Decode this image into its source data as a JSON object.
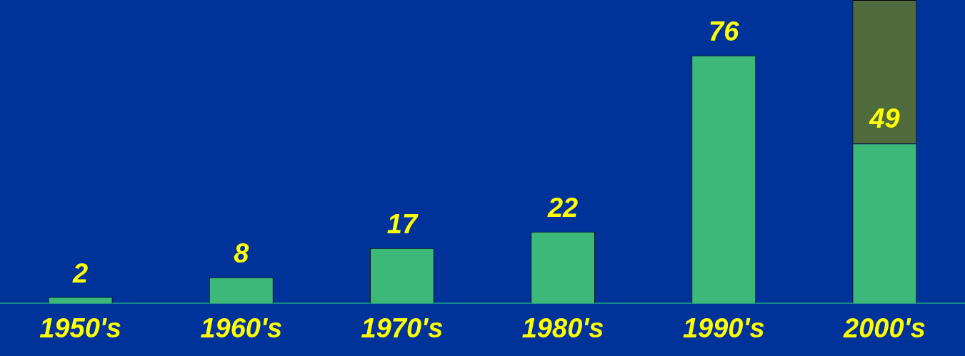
{
  "chart_data": {
    "type": "bar",
    "categories": [
      "1950's",
      "1960's",
      "1970's",
      "1980's",
      "1990's",
      "2000's"
    ],
    "stacked": true,
    "ylim": [
      0,
      93
    ],
    "tick_labels": "x",
    "grid": false,
    "legend": false,
    "series": [
      {
        "color": "#3cb878",
        "values": [
          2,
          8,
          17,
          22,
          76,
          49
        ],
        "value_labels": [
          "2",
          "8",
          "17",
          "22",
          "76",
          "49"
        ]
      },
      {
        "color": "#4f6a3c",
        "values": [
          null,
          null,
          null,
          null,
          null,
          44
        ],
        "value_labels": [
          null,
          null,
          null,
          null,
          null,
          null
        ]
      }
    ]
  }
}
